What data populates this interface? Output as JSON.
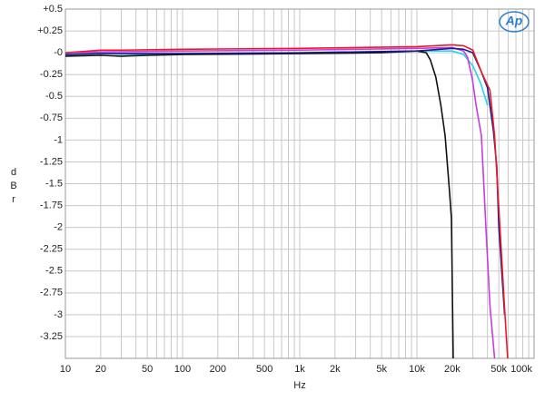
{
  "chart_data": {
    "type": "line",
    "logo": "Ap",
    "x_label": "Hz",
    "y_label": [
      "d",
      "B",
      "r"
    ],
    "log_x": true,
    "grid": true,
    "xlim": [
      10,
      100000
    ],
    "ylim": [
      -3.5,
      0.5
    ],
    "xticks": [
      10,
      20,
      50,
      100,
      200,
      500,
      {
        "value": 1000,
        "label": "1k"
      },
      {
        "value": 2000,
        "label": "2k"
      },
      {
        "value": 5000,
        "label": "5k"
      },
      {
        "value": 10000,
        "label": "10k"
      },
      {
        "value": 20000,
        "label": "20k"
      },
      {
        "value": 50000,
        "label": "50k"
      },
      {
        "value": 100000,
        "label": "100k"
      }
    ],
    "xminor": [
      30,
      40,
      60,
      70,
      80,
      90,
      300,
      400,
      600,
      700,
      800,
      900,
      3000,
      4000,
      6000,
      7000,
      8000,
      9000,
      30000,
      40000,
      60000,
      70000,
      80000,
      90000
    ],
    "yticks": [
      {
        "value": 0.5,
        "label": "+0.5"
      },
      {
        "value": 0.25,
        "label": "+0.25"
      },
      {
        "value": 0,
        "label": "-0"
      },
      -0.25,
      -0.5,
      -0.75,
      -1,
      -1.25,
      -1.5,
      -1.75,
      -2,
      -2.25,
      -2.5,
      -2.75,
      -3,
      -3.25
    ],
    "yminor": [
      -3.5
    ],
    "series": [
      {
        "color": "#27d3e8",
        "x": [
          10,
          20,
          50,
          100,
          1000,
          10000,
          20000,
          25000,
          30000,
          35000,
          40000
        ],
        "values": [
          -0.02,
          -0.01,
          -0.02,
          -0.01,
          0.0,
          0.02,
          0.02,
          -0.02,
          -0.15,
          -0.35,
          -0.6
        ]
      },
      {
        "color": "#111111",
        "x": [
          10,
          20,
          30,
          50,
          100,
          1000,
          5000,
          10000,
          12000,
          13000,
          14500,
          16000,
          17400,
          19000,
          19700,
          20400
        ],
        "values": [
          -0.04,
          -0.03,
          -0.04,
          -0.03,
          -0.02,
          -0.01,
          0.0,
          0.02,
          0.0,
          -0.08,
          -0.28,
          -0.6,
          -0.95,
          -1.6,
          -1.9,
          -3.5
        ]
      },
      {
        "color": "#c83be0",
        "x": [
          10,
          20,
          100,
          1000,
          10000,
          20000,
          25000,
          27000,
          29700,
          32000,
          35500,
          38800,
          42000,
          46000
        ],
        "values": [
          0.0,
          0.01,
          0.02,
          0.03,
          0.05,
          0.06,
          0.02,
          -0.05,
          -0.3,
          -0.6,
          -0.95,
          -2.0,
          -2.9,
          -3.5
        ]
      },
      {
        "color": "#1a1a8c",
        "x": [
          10,
          20,
          100,
          1000,
          10000,
          20000,
          25000,
          30000,
          35000,
          40000,
          45000,
          48000,
          50000,
          56000
        ],
        "values": [
          -0.02,
          -0.01,
          -0.01,
          0.0,
          0.02,
          0.05,
          0.04,
          0.0,
          -0.2,
          -0.4,
          -0.9,
          -1.3,
          -2.0,
          -3.0
        ]
      },
      {
        "color": "#e8192c",
        "x": [
          10,
          20,
          30,
          100,
          1000,
          10000,
          20000,
          25000,
          30000,
          35500,
          42000,
          46000,
          50600,
          56000,
          59500
        ],
        "values": [
          0.0,
          0.03,
          0.03,
          0.04,
          0.05,
          0.07,
          0.09,
          0.08,
          0.03,
          -0.22,
          -0.43,
          -0.95,
          -1.9,
          -2.93,
          -3.5
        ]
      }
    ]
  }
}
